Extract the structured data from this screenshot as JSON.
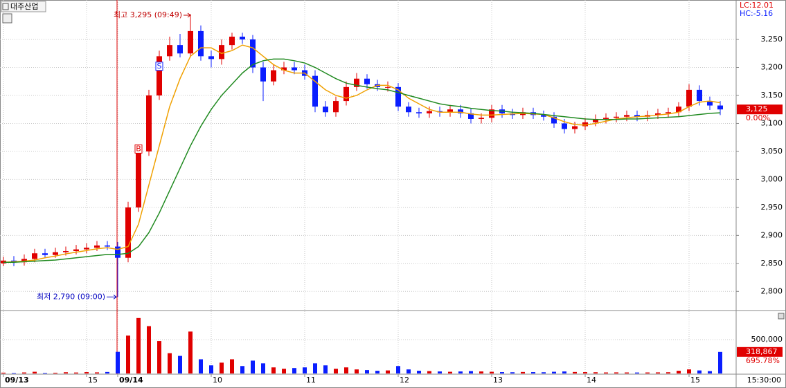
{
  "chart_data": {
    "type": "candlestick",
    "title": "대주산업",
    "lc_label": "LC:12.01",
    "hc_label": "HC:-5.16",
    "high_annotation": "최고 3,295 (09:49)",
    "low_annotation": "최저 2,790 (09:00)",
    "buy_signal": "B",
    "sell_signal": "S",
    "last_price_label": "3,125",
    "last_change_label": "0.00%",
    "last_volume_label": "318,867",
    "last_volume_ratio_label": "695.78%",
    "time_label": "15:30:00",
    "up_color": "#e00000",
    "down_color": "#0a1eff",
    "categories": [
      "09/13",
      null,
      null,
      null,
      null,
      null,
      null,
      null,
      "15",
      null,
      null,
      "09/14",
      null,
      null,
      null,
      null,
      null,
      null,
      null,
      null,
      "10",
      null,
      null,
      null,
      null,
      null,
      null,
      null,
      null,
      "11",
      null,
      null,
      null,
      null,
      null,
      null,
      null,
      null,
      "12",
      null,
      null,
      null,
      null,
      null,
      null,
      null,
      null,
      "13",
      null,
      null,
      null,
      null,
      null,
      null,
      null,
      null,
      "14",
      null,
      null,
      null,
      null,
      null,
      null,
      null,
      null,
      null,
      "15",
      null,
      null,
      null
    ],
    "open": [
      2850,
      2855,
      2852,
      2858,
      2868,
      2865,
      2870,
      2872,
      2875,
      2878,
      2882,
      2880,
      2860,
      2950,
      3050,
      3150,
      3220,
      3240,
      3225,
      3265,
      3220,
      3215,
      3240,
      3255,
      3250,
      3200,
      3175,
      3195,
      3200,
      3195,
      3185,
      3130,
      3120,
      3140,
      3165,
      3180,
      3170,
      3165,
      3165,
      3130,
      3120,
      3118,
      3122,
      3120,
      3125,
      3118,
      3108,
      3110,
      3125,
      3118,
      3115,
      3120,
      3115,
      3112,
      3100,
      3090,
      3095,
      3102,
      3108,
      3110,
      3112,
      3115,
      3112,
      3115,
      3118,
      3120,
      3130,
      3160,
      3140,
      3132
    ],
    "high": [
      2862,
      2863,
      2866,
      2876,
      2876,
      2878,
      2880,
      2883,
      2886,
      2890,
      2890,
      2888,
      2960,
      3060,
      3160,
      3230,
      3255,
      3260,
      3295,
      3275,
      3230,
      3250,
      3262,
      3262,
      3258,
      3210,
      3205,
      3210,
      3210,
      3205,
      3195,
      3140,
      3148,
      3175,
      3190,
      3188,
      3178,
      3175,
      3172,
      3138,
      3128,
      3130,
      3130,
      3133,
      3133,
      3126,
      3118,
      3133,
      3133,
      3126,
      3128,
      3128,
      3123,
      3120,
      3108,
      3103,
      3110,
      3116,
      3118,
      3120,
      3123,
      3123,
      3123,
      3126,
      3128,
      3138,
      3170,
      3168,
      3148,
      3140
    ],
    "low": [
      2845,
      2845,
      2846,
      2852,
      2860,
      2860,
      2864,
      2866,
      2868,
      2872,
      2874,
      2790,
      2852,
      2942,
      3042,
      3142,
      3212,
      3218,
      3218,
      3212,
      3200,
      3205,
      3232,
      3242,
      3190,
      3140,
      3168,
      3188,
      3188,
      3178,
      3120,
      3112,
      3112,
      3132,
      3158,
      3162,
      3158,
      3157,
      3122,
      3112,
      3110,
      3110,
      3112,
      3112,
      3110,
      3100,
      3100,
      3102,
      3110,
      3108,
      3108,
      3108,
      3105,
      3092,
      3082,
      3082,
      3088,
      3095,
      3100,
      3102,
      3104,
      3104,
      3104,
      3108,
      3110,
      3112,
      3122,
      3132,
      3124,
      3115
    ],
    "close": [
      2855,
      2852,
      2858,
      2868,
      2865,
      2870,
      2872,
      2875,
      2878,
      2882,
      2880,
      2860,
      2950,
      3050,
      3150,
      3220,
      3240,
      3225,
      3265,
      3220,
      3215,
      3240,
      3255,
      3250,
      3200,
      3175,
      3195,
      3200,
      3195,
      3185,
      3130,
      3120,
      3140,
      3165,
      3180,
      3170,
      3165,
      3165,
      3130,
      3120,
      3118,
      3122,
      3120,
      3125,
      3118,
      3108,
      3110,
      3125,
      3118,
      3115,
      3120,
      3115,
      3112,
      3100,
      3090,
      3095,
      3102,
      3108,
      3110,
      3112,
      3115,
      3112,
      3115,
      3118,
      3120,
      3130,
      3160,
      3140,
      3132,
      3125
    ],
    "series": [
      {
        "color": "#f0a000",
        "values": [
          2852,
          2853,
          2854,
          2856,
          2860,
          2863,
          2867,
          2870,
          2873,
          2876,
          2878,
          2875,
          2880,
          2920,
          2990,
          3060,
          3130,
          3180,
          3220,
          3235,
          3235,
          3225,
          3230,
          3240,
          3235,
          3220,
          3205,
          3195,
          3190,
          3190,
          3175,
          3160,
          3150,
          3145,
          3150,
          3160,
          3168,
          3168,
          3160,
          3145,
          3135,
          3125,
          3120,
          3120,
          3120,
          3117,
          3115,
          3115,
          3116,
          3117,
          3118,
          3117,
          3116,
          3110,
          3103,
          3098,
          3097,
          3100,
          3104,
          3108,
          3110,
          3112,
          3113,
          3115,
          3117,
          3120,
          3130,
          3138,
          3140,
          3137
        ]
      },
      {
        "color": "#208a20",
        "values": [
          2852,
          2852,
          2853,
          2854,
          2855,
          2856,
          2858,
          2860,
          2862,
          2864,
          2866,
          2866,
          2868,
          2880,
          2905,
          2940,
          2980,
          3020,
          3060,
          3095,
          3125,
          3150,
          3170,
          3190,
          3205,
          3212,
          3215,
          3215,
          3212,
          3208,
          3200,
          3190,
          3180,
          3172,
          3168,
          3165,
          3162,
          3160,
          3155,
          3150,
          3145,
          3140,
          3135,
          3132,
          3130,
          3127,
          3125,
          3123,
          3122,
          3120,
          3119,
          3118,
          3116,
          3114,
          3112,
          3110,
          3108,
          3107,
          3107,
          3107,
          3108,
          3108,
          3109,
          3110,
          3111,
          3112,
          3114,
          3116,
          3118,
          3119
        ]
      }
    ],
    "volumes": [
      12000,
      8000,
      15000,
      25000,
      9000,
      11000,
      18000,
      14000,
      20000,
      16000,
      22000,
      320000,
      560000,
      820000,
      700000,
      480000,
      300000,
      260000,
      620000,
      210000,
      120000,
      160000,
      210000,
      110000,
      190000,
      150000,
      90000,
      70000,
      80000,
      90000,
      150000,
      120000,
      70000,
      90000,
      60000,
      50000,
      40000,
      45000,
      110000,
      60000,
      40000,
      35000,
      30000,
      25000,
      30000,
      35000,
      30000,
      25000,
      20000,
      18000,
      22000,
      20000,
      18000,
      25000,
      30000,
      22000,
      20000,
      18000,
      15000,
      16000,
      15000,
      14000,
      15000,
      16000,
      18000,
      40000,
      60000,
      45000,
      35000,
      318867
    ],
    "ylim": [
      2767,
      3318
    ],
    "yticks": [
      {
        "value": 2800,
        "label": "2,800"
      },
      {
        "value": 2850,
        "label": "2,850"
      },
      {
        "value": 2900,
        "label": "2,900"
      },
      {
        "value": 2950,
        "label": "2,950"
      },
      {
        "value": 3000,
        "label": "3,000"
      },
      {
        "value": 3050,
        "label": "3,050"
      },
      {
        "value": 3100,
        "label": "3,100"
      },
      {
        "value": 3150,
        "label": "3,150"
      },
      {
        "value": 3200,
        "label": "3,200"
      },
      {
        "value": 3250,
        "label": "3,250"
      }
    ],
    "volume_ylim": [
      0,
      900000
    ],
    "volume_yticks": [
      {
        "value": 500000,
        "label": "500,000"
      }
    ],
    "grid": true
  }
}
